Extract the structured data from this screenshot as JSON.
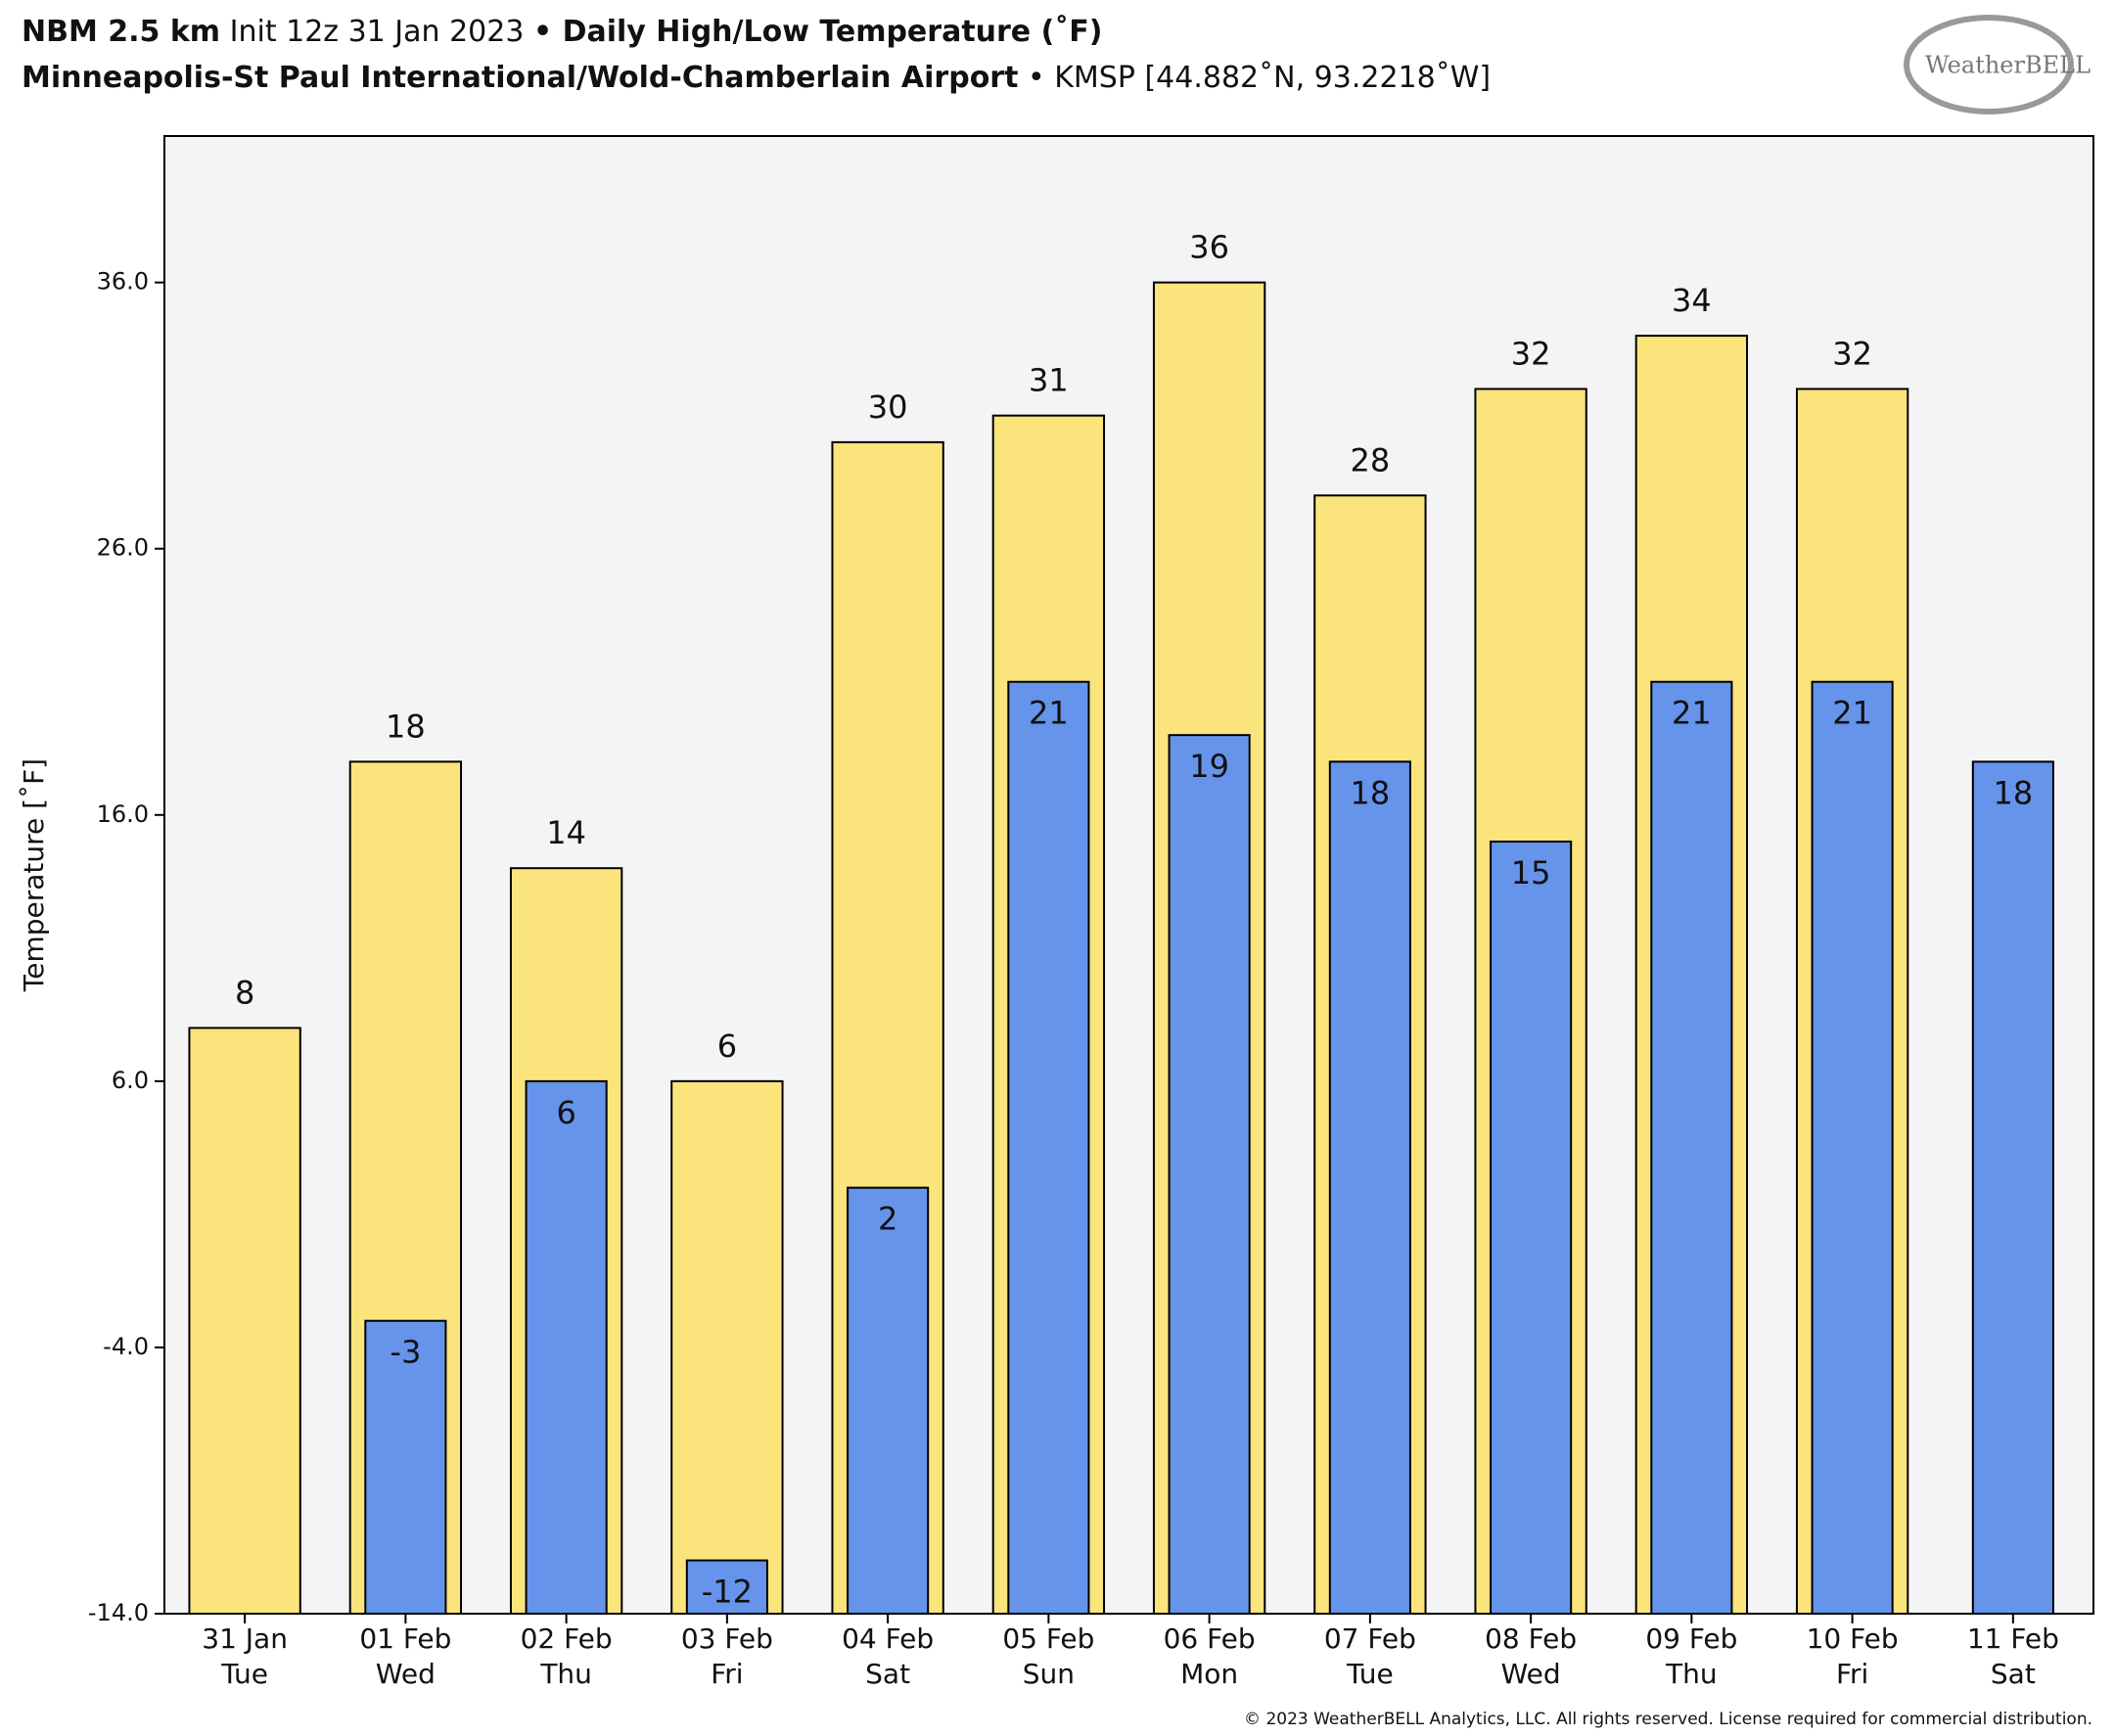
{
  "chart_data": {
    "type": "bar",
    "title_parts": [
      "NBM 2.5 km",
      "Init 12z 31 Jan 2023",
      "• Daily High/Low Temperature (˚F)"
    ],
    "subtitle_parts": [
      "Minneapolis-St Paul International/Wold-Chamberlain Airport",
      "• KMSP [44.882˚N, 93.2218˚W]"
    ],
    "y_label": "Temperature [˚F]",
    "logo": "WeatherBELL",
    "copyright": "© 2023 WeatherBELL Analytics, LLC. All rights reserved. License required for commercial distribution.",
    "categories": [
      "31 Jan",
      "01 Feb",
      "02 Feb",
      "03 Feb",
      "04 Feb",
      "05 Feb",
      "06 Feb",
      "07 Feb",
      "08 Feb",
      "09 Feb",
      "10 Feb",
      "11 Feb"
    ],
    "weekdays": [
      "Tue",
      "Wed",
      "Thu",
      "Fri",
      "Sat",
      "Sun",
      "Mon",
      "Tue",
      "Wed",
      "Thu",
      "Fri",
      "Sat"
    ],
    "series": [
      {
        "color": "#fbe47c",
        "values": [
          8,
          18,
          14,
          6,
          30,
          31,
          36,
          28,
          32,
          34,
          32,
          null
        ]
      },
      {
        "color": "#6594ea",
        "values": [
          null,
          -3,
          6,
          -12,
          2,
          21,
          19,
          18,
          15,
          21,
          21,
          18
        ]
      }
    ],
    "ylim": [
      -14,
      41.5
    ],
    "yticks": [
      {
        "value": -14,
        "label": "-14.0"
      },
      {
        "value": -4,
        "label": "-4.0"
      },
      {
        "value": 6,
        "label": "6.0"
      },
      {
        "value": 16,
        "label": "16.0"
      },
      {
        "value": 26,
        "label": "26.0"
      },
      {
        "value": 36,
        "label": "36.0"
      }
    ]
  }
}
